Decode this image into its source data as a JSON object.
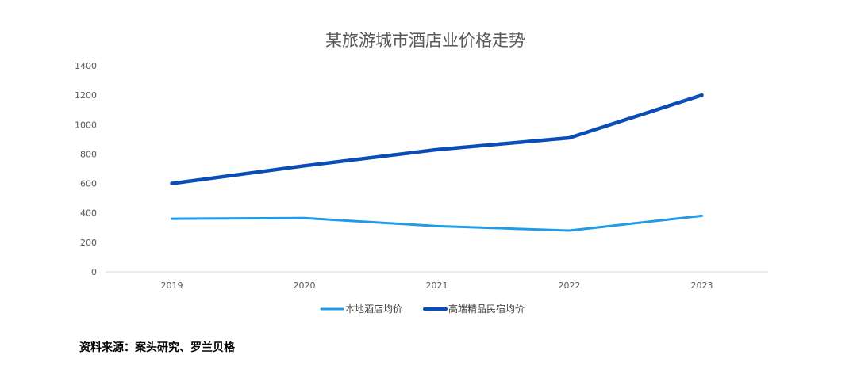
{
  "chart_data": {
    "type": "line",
    "title": "某旅游城市酒店业价格走势",
    "xlabel": "",
    "ylabel": "",
    "categories": [
      "2019",
      "2020",
      "2021",
      "2022",
      "2023"
    ],
    "ylim": [
      0,
      1400
    ],
    "yticks": [
      0,
      200,
      400,
      600,
      800,
      1000,
      1200,
      1400
    ],
    "grid": false,
    "legend_position": "bottom",
    "series": [
      {
        "name": "本地酒店均价",
        "color": "#1F9BEA",
        "values": [
          360,
          365,
          310,
          280,
          380
        ]
      },
      {
        "name": "高端精品民宿均价",
        "color": "#0B4DB8",
        "values": [
          600,
          720,
          830,
          910,
          1200
        ]
      }
    ]
  },
  "source_note": "资料来源：案头研究、罗兰贝格"
}
